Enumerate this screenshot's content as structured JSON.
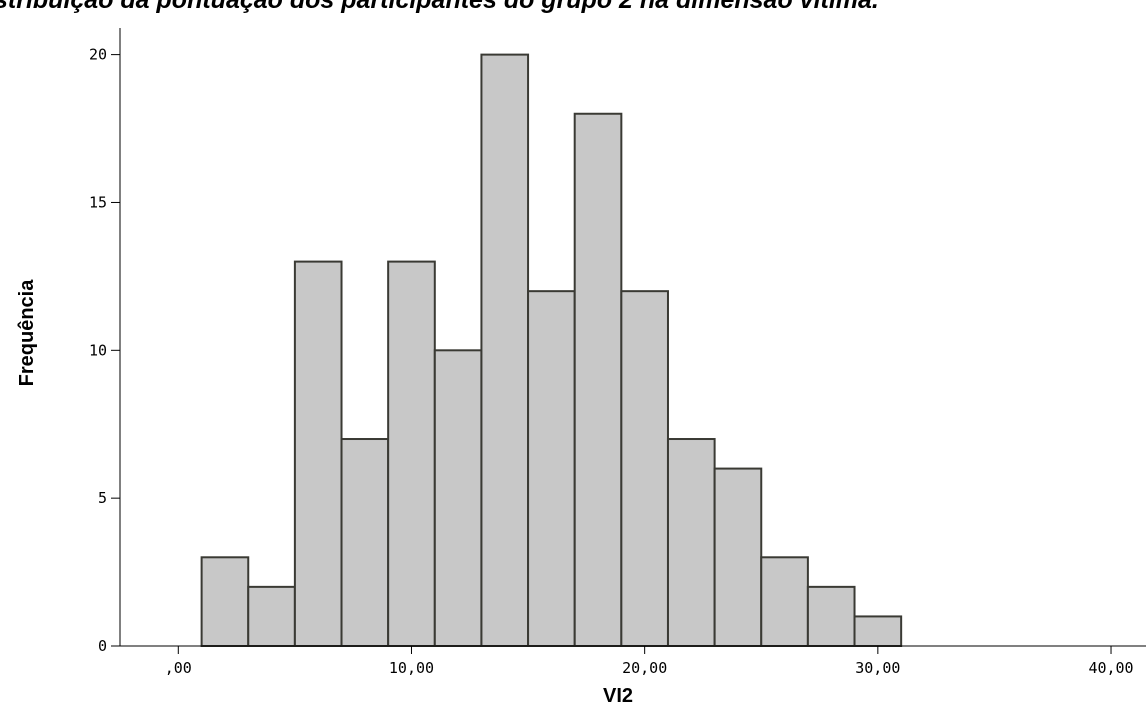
{
  "caption": "stribuição da pontuação dos participantes do grupo 2 na dimensão vítima.",
  "chart_data": {
    "type": "bar",
    "title": "",
    "xlabel": "VI2",
    "ylabel": "Frequência",
    "bin_edges": [
      1,
      3,
      5,
      7,
      9,
      11,
      13,
      15,
      17,
      19,
      21,
      23,
      25,
      27,
      29,
      31
    ],
    "values": [
      3,
      2,
      13,
      7,
      13,
      10,
      20,
      12,
      18,
      12,
      7,
      6,
      3,
      2,
      1
    ],
    "xlim": [
      -2.5,
      41.5
    ],
    "ylim": [
      0,
      20.9
    ],
    "xticks": [
      0,
      10,
      20,
      30,
      40
    ],
    "xtick_labels": [
      ",00",
      "10,00",
      "20,00",
      "30,00",
      "40,00"
    ],
    "yticks": [
      0,
      5,
      10,
      15,
      20
    ],
    "ytick_labels": [
      "0",
      "5",
      "10",
      "15",
      "20"
    ],
    "bar_color": "#c8c8c8",
    "bar_edge_color": "#3a3a34",
    "grid": false
  }
}
